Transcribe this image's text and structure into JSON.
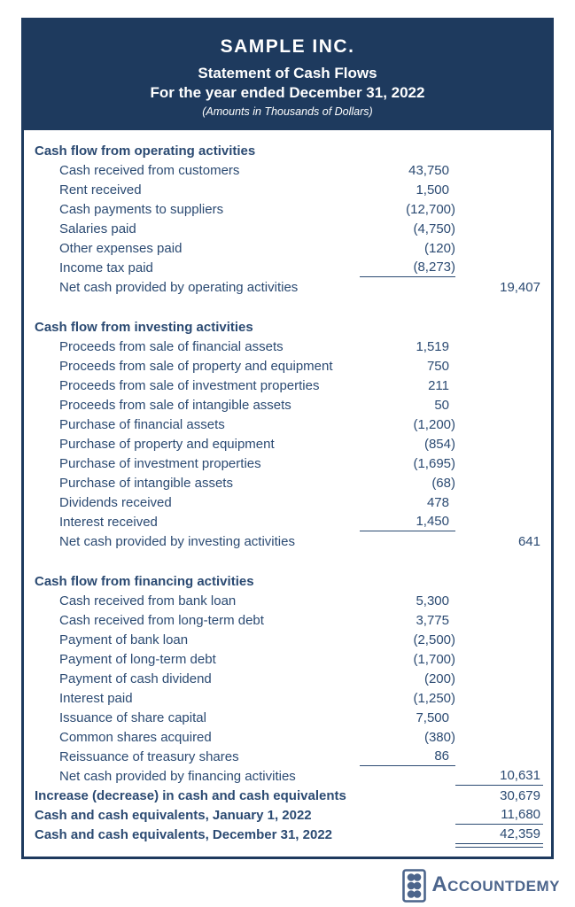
{
  "header": {
    "company": "SAMPLE INC.",
    "title": "Statement of Cash Flows",
    "period": "For the year ended December 31, 2022",
    "note": "(Amounts in Thousands of Dollars)"
  },
  "sections": [
    {
      "title": "Cash flow from operating activities",
      "rows": [
        {
          "label": "Cash received from customers",
          "col1": "43,750"
        },
        {
          "label": "Rent received",
          "col1": "1,500"
        },
        {
          "label": "Cash payments to suppliers",
          "col1": "(12,700)"
        },
        {
          "label": "Salaries paid",
          "col1": "(4,750)"
        },
        {
          "label": "Other expenses paid",
          "col1": "(120)"
        },
        {
          "label": "Income tax paid",
          "col1": "(8,273)",
          "underline_col1": true
        },
        {
          "label": "Net cash provided by operating activities",
          "col2": "19,407"
        }
      ]
    },
    {
      "title": "Cash flow from investing activities",
      "rows": [
        {
          "label": "Proceeds from sale of financial assets",
          "col1": "1,519"
        },
        {
          "label": "Proceeds from sale of property and equipment",
          "col1": "750"
        },
        {
          "label": "Proceeds from sale of investment properties",
          "col1": "211"
        },
        {
          "label": "Proceeds from sale of intangible assets",
          "col1": "50"
        },
        {
          "label": "Purchase of financial assets",
          "col1": "(1,200)"
        },
        {
          "label": "Purchase of property and equipment",
          "col1": "(854)"
        },
        {
          "label": "Purchase of investment properties",
          "col1": "(1,695)"
        },
        {
          "label": "Purchase of intangible assets",
          "col1": "(68)"
        },
        {
          "label": "Dividends received",
          "col1": "478"
        },
        {
          "label": "Interest received",
          "col1": "1,450",
          "underline_col1": true
        },
        {
          "label": "Net cash provided by investing activities",
          "col2": "641"
        }
      ]
    },
    {
      "title": "Cash flow from financing activities",
      "rows": [
        {
          "label": "Cash received from bank loan",
          "col1": "5,300"
        },
        {
          "label": "Cash received from long-term debt",
          "col1": "3,775"
        },
        {
          "label": "Payment of bank loan",
          "col1": "(2,500)"
        },
        {
          "label": "Payment of long-term debt",
          "col1": "(1,700)"
        },
        {
          "label": "Payment of cash dividend",
          "col1": "(200)"
        },
        {
          "label": "Interest paid",
          "col1": "(1,250)"
        },
        {
          "label": "Issuance of share capital",
          "col1": "7,500"
        },
        {
          "label": "Common shares acquired",
          "col1": "(380)"
        },
        {
          "label": "Reissuance of treasury shares",
          "col1": "86",
          "underline_col1": true
        },
        {
          "label": "Net cash provided by financing activities",
          "col2": "10,631",
          "underline_col2": true
        }
      ]
    }
  ],
  "summary_rows": [
    {
      "label": "Increase (decrease) in cash and cash equivalents",
      "col2": "30,679"
    },
    {
      "label": "Cash and cash equivalents, January 1, 2022",
      "col2": "11,680",
      "underline_col2": true
    },
    {
      "label": "Cash and cash equivalents, December 31, 2022",
      "col2": "42,359",
      "double_underline_col2": true
    }
  ],
  "footer": {
    "logo_text": "ACCOUNTDEMY",
    "logo_icon": "abacus-icon"
  },
  "colors": {
    "navy": "#1e3a5e",
    "text": "#2b4a72",
    "logo": "#4c658c"
  }
}
